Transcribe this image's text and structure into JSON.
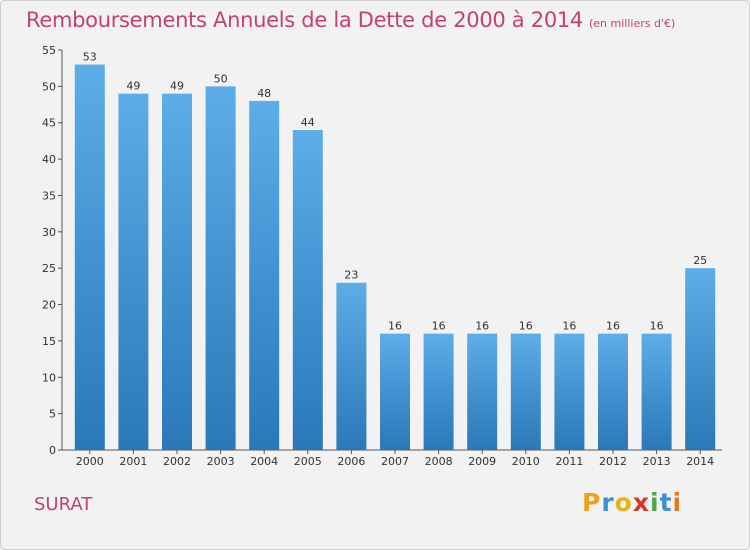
{
  "title": "Remboursements Annuels de la Dette de 2000 à 2014",
  "subtitle": "(en milliers d'€)",
  "commune": "SURAT",
  "logo": {
    "text": "Proxiti",
    "letters": [
      "P",
      "r",
      "o",
      "x",
      "i",
      "t",
      "i"
    ],
    "colors": [
      "#f0a01e",
      "#3a8fd8",
      "#e8b317",
      "#d9342b",
      "#4aa84a",
      "#3a8fd8",
      "#e07b1a"
    ]
  },
  "colors": {
    "bar_top": "#5dade8",
    "bar_bottom": "#2a78b8",
    "accent": "#c4426e"
  },
  "chart_data": {
    "type": "bar",
    "categories": [
      "2000",
      "2001",
      "2002",
      "2003",
      "2004",
      "2005",
      "2006",
      "2007",
      "2008",
      "2009",
      "2010",
      "2011",
      "2012",
      "2013",
      "2014"
    ],
    "values": [
      53,
      49,
      49,
      50,
      48,
      44,
      23,
      16,
      16,
      16,
      16,
      16,
      16,
      16,
      25
    ],
    "ylim": [
      0,
      55
    ],
    "yticks": [
      0,
      5,
      10,
      15,
      20,
      25,
      30,
      35,
      40,
      45,
      50,
      55
    ],
    "grid": false,
    "legend": "none"
  }
}
